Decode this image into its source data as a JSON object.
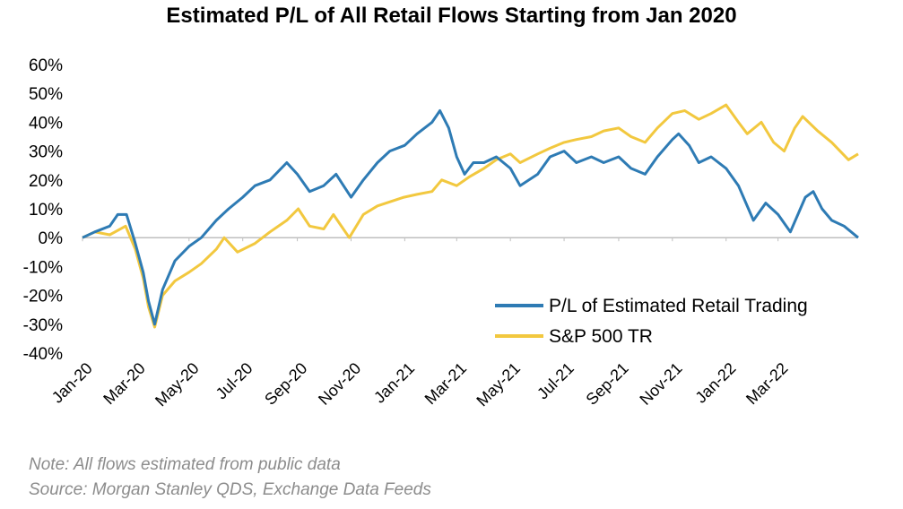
{
  "chart_data": {
    "type": "line",
    "title": "Estimated P/L of All Retail Flows Starting from Jan 2020",
    "xlabel": "",
    "ylabel": "",
    "ylim": [
      -40,
      60
    ],
    "y_ticks": [
      "60%",
      "50%",
      "40%",
      "30%",
      "20%",
      "10%",
      "0%",
      "-10%",
      "-20%",
      "-30%",
      "-40%"
    ],
    "y_tick_values": [
      60,
      50,
      40,
      30,
      20,
      10,
      0,
      -10,
      -20,
      -30,
      -40
    ],
    "x_ticks": [
      "Jan-20",
      "Mar-20",
      "May-20",
      "Jul-20",
      "Sep-20",
      "Nov-20",
      "Jan-21",
      "Mar-21",
      "May-21",
      "Jul-21",
      "Sep-21",
      "Nov-21",
      "Jan-22",
      "Mar-22"
    ],
    "xlim": [
      "2020-01-01",
      "2022-05-31"
    ],
    "grid": false,
    "legend_position": "bottom-right",
    "series": [
      {
        "name": "P/L of Estimated Retail Trading",
        "color": "#2e7bb4",
        "points": [
          [
            "2020-01-01",
            0
          ],
          [
            "2020-01-15",
            2
          ],
          [
            "2020-02-01",
            4
          ],
          [
            "2020-02-10",
            8
          ],
          [
            "2020-02-20",
            8
          ],
          [
            "2020-03-01",
            -2
          ],
          [
            "2020-03-10",
            -12
          ],
          [
            "2020-03-16",
            -22
          ],
          [
            "2020-03-23",
            -30
          ],
          [
            "2020-04-01",
            -18
          ],
          [
            "2020-04-15",
            -8
          ],
          [
            "2020-05-01",
            -3
          ],
          [
            "2020-05-15",
            0
          ],
          [
            "2020-06-01",
            6
          ],
          [
            "2020-06-15",
            10
          ],
          [
            "2020-07-01",
            14
          ],
          [
            "2020-07-15",
            18
          ],
          [
            "2020-08-01",
            20
          ],
          [
            "2020-08-20",
            26
          ],
          [
            "2020-09-01",
            22
          ],
          [
            "2020-09-15",
            16
          ],
          [
            "2020-10-01",
            18
          ],
          [
            "2020-10-15",
            22
          ],
          [
            "2020-11-01",
            14
          ],
          [
            "2020-11-15",
            20
          ],
          [
            "2020-12-01",
            26
          ],
          [
            "2020-12-15",
            30
          ],
          [
            "2021-01-01",
            32
          ],
          [
            "2021-01-15",
            36
          ],
          [
            "2021-02-01",
            40
          ],
          [
            "2021-02-10",
            44
          ],
          [
            "2021-02-20",
            38
          ],
          [
            "2021-03-01",
            28
          ],
          [
            "2021-03-10",
            22
          ],
          [
            "2021-03-20",
            26
          ],
          [
            "2021-04-01",
            26
          ],
          [
            "2021-04-15",
            28
          ],
          [
            "2021-05-01",
            24
          ],
          [
            "2021-05-12",
            18
          ],
          [
            "2021-06-01",
            22
          ],
          [
            "2021-06-15",
            28
          ],
          [
            "2021-07-01",
            30
          ],
          [
            "2021-07-15",
            26
          ],
          [
            "2021-08-01",
            28
          ],
          [
            "2021-08-15",
            26
          ],
          [
            "2021-09-01",
            28
          ],
          [
            "2021-09-15",
            24
          ],
          [
            "2021-10-01",
            22
          ],
          [
            "2021-10-15",
            28
          ],
          [
            "2021-11-01",
            34
          ],
          [
            "2021-11-08",
            36
          ],
          [
            "2021-11-20",
            32
          ],
          [
            "2021-12-01",
            26
          ],
          [
            "2021-12-15",
            28
          ],
          [
            "2022-01-01",
            24
          ],
          [
            "2022-01-15",
            18
          ],
          [
            "2022-02-01",
            6
          ],
          [
            "2022-02-15",
            12
          ],
          [
            "2022-03-01",
            8
          ],
          [
            "2022-03-15",
            2
          ],
          [
            "2022-04-01",
            14
          ],
          [
            "2022-04-10",
            16
          ],
          [
            "2022-04-20",
            10
          ],
          [
            "2022-05-01",
            6
          ],
          [
            "2022-05-15",
            4
          ],
          [
            "2022-05-31",
            0
          ]
        ]
      },
      {
        "name": "S&P 500 TR",
        "color": "#f2c83f",
        "points": [
          [
            "2020-01-01",
            0
          ],
          [
            "2020-01-15",
            2
          ],
          [
            "2020-02-01",
            1
          ],
          [
            "2020-02-19",
            4
          ],
          [
            "2020-03-01",
            -4
          ],
          [
            "2020-03-10",
            -14
          ],
          [
            "2020-03-16",
            -24
          ],
          [
            "2020-03-23",
            -31
          ],
          [
            "2020-04-01",
            -20
          ],
          [
            "2020-04-15",
            -15
          ],
          [
            "2020-05-01",
            -12
          ],
          [
            "2020-05-15",
            -9
          ],
          [
            "2020-06-01",
            -4
          ],
          [
            "2020-06-10",
            0
          ],
          [
            "2020-06-25",
            -5
          ],
          [
            "2020-07-15",
            -2
          ],
          [
            "2020-08-01",
            2
          ],
          [
            "2020-08-20",
            6
          ],
          [
            "2020-09-02",
            10
          ],
          [
            "2020-09-15",
            4
          ],
          [
            "2020-10-01",
            3
          ],
          [
            "2020-10-12",
            8
          ],
          [
            "2020-10-30",
            0
          ],
          [
            "2020-11-15",
            8
          ],
          [
            "2020-12-01",
            11
          ],
          [
            "2020-12-31",
            14
          ],
          [
            "2021-01-15",
            15
          ],
          [
            "2021-02-01",
            16
          ],
          [
            "2021-02-12",
            20
          ],
          [
            "2021-03-01",
            18
          ],
          [
            "2021-03-15",
            21
          ],
          [
            "2021-04-01",
            24
          ],
          [
            "2021-04-15",
            27
          ],
          [
            "2021-05-01",
            29
          ],
          [
            "2021-05-12",
            26
          ],
          [
            "2021-06-01",
            29
          ],
          [
            "2021-06-15",
            31
          ],
          [
            "2021-07-01",
            33
          ],
          [
            "2021-07-15",
            34
          ],
          [
            "2021-08-01",
            35
          ],
          [
            "2021-08-15",
            37
          ],
          [
            "2021-09-01",
            38
          ],
          [
            "2021-09-15",
            35
          ],
          [
            "2021-10-01",
            33
          ],
          [
            "2021-10-15",
            38
          ],
          [
            "2021-11-01",
            43
          ],
          [
            "2021-11-15",
            44
          ],
          [
            "2021-12-01",
            41
          ],
          [
            "2021-12-15",
            43
          ],
          [
            "2022-01-01",
            46
          ],
          [
            "2022-01-15",
            40
          ],
          [
            "2022-01-25",
            36
          ],
          [
            "2022-02-10",
            40
          ],
          [
            "2022-02-24",
            33
          ],
          [
            "2022-03-08",
            30
          ],
          [
            "2022-03-20",
            38
          ],
          [
            "2022-03-29",
            42
          ],
          [
            "2022-04-15",
            37
          ],
          [
            "2022-05-01",
            33
          ],
          [
            "2022-05-20",
            27
          ],
          [
            "2022-05-31",
            29
          ]
        ]
      }
    ]
  },
  "footnote": {
    "note": "Note:  All flows estimated from public data",
    "source": "Source: Morgan Stanley QDS, Exchange Data Feeds"
  }
}
